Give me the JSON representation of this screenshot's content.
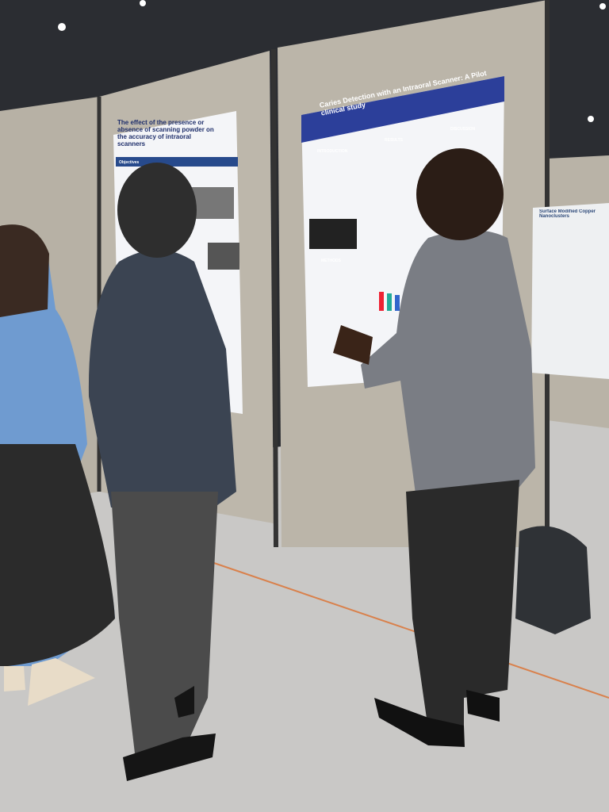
{
  "posters": [
    {
      "title": "The effect of the presence or absence of scanning powder on the accuracy of intraoral scanners",
      "headings": [
        "Objectives"
      ]
    },
    {
      "title": "Caries Detection with an Intraoral Scanner: A Pilot clinical study",
      "headings": [
        "INTRODUCTION",
        "RESULTS",
        "DISCUSSION",
        "METHODS"
      ]
    },
    {
      "title": "Surface Modified Copper Nanoclusters",
      "headings": []
    }
  ]
}
